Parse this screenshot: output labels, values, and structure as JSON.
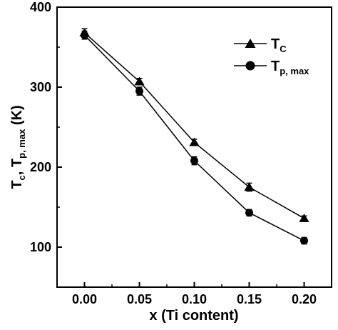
{
  "chart_data": {
    "type": "line",
    "x": [
      0.0,
      0.05,
      0.1,
      0.15,
      0.2
    ],
    "x_tick_labels": [
      "0.00",
      "0.05",
      "0.10",
      "0.15",
      "0.20"
    ],
    "y_tick_labels": [
      "100",
      "200",
      "300",
      "400"
    ],
    "y_ticks": [
      100,
      200,
      300,
      400
    ],
    "xlim": [
      -0.025,
      0.225
    ],
    "ylim": [
      50,
      400
    ],
    "xlabel": "x (Ti content)",
    "ylabel": {
      "main_1": "T",
      "sub_1": "c",
      "sep": ", ",
      "main_2": "T",
      "sub_2": "p, max",
      "unit": " (K)"
    },
    "grid": false,
    "legend_position": "top-right",
    "series": [
      {
        "name": "T_C",
        "legend_main": "T",
        "legend_sub": "C",
        "marker": "triangle",
        "values": [
          368,
          307,
          231,
          175,
          136
        ],
        "errors": [
          5,
          4,
          4,
          5,
          3
        ]
      },
      {
        "name": "T_p,max",
        "legend_main": "T",
        "legend_sub": "p, max",
        "marker": "circle",
        "values": [
          365,
          295,
          208,
          143,
          108
        ],
        "errors": [
          5,
          5,
          5,
          4,
          4
        ]
      }
    ]
  }
}
